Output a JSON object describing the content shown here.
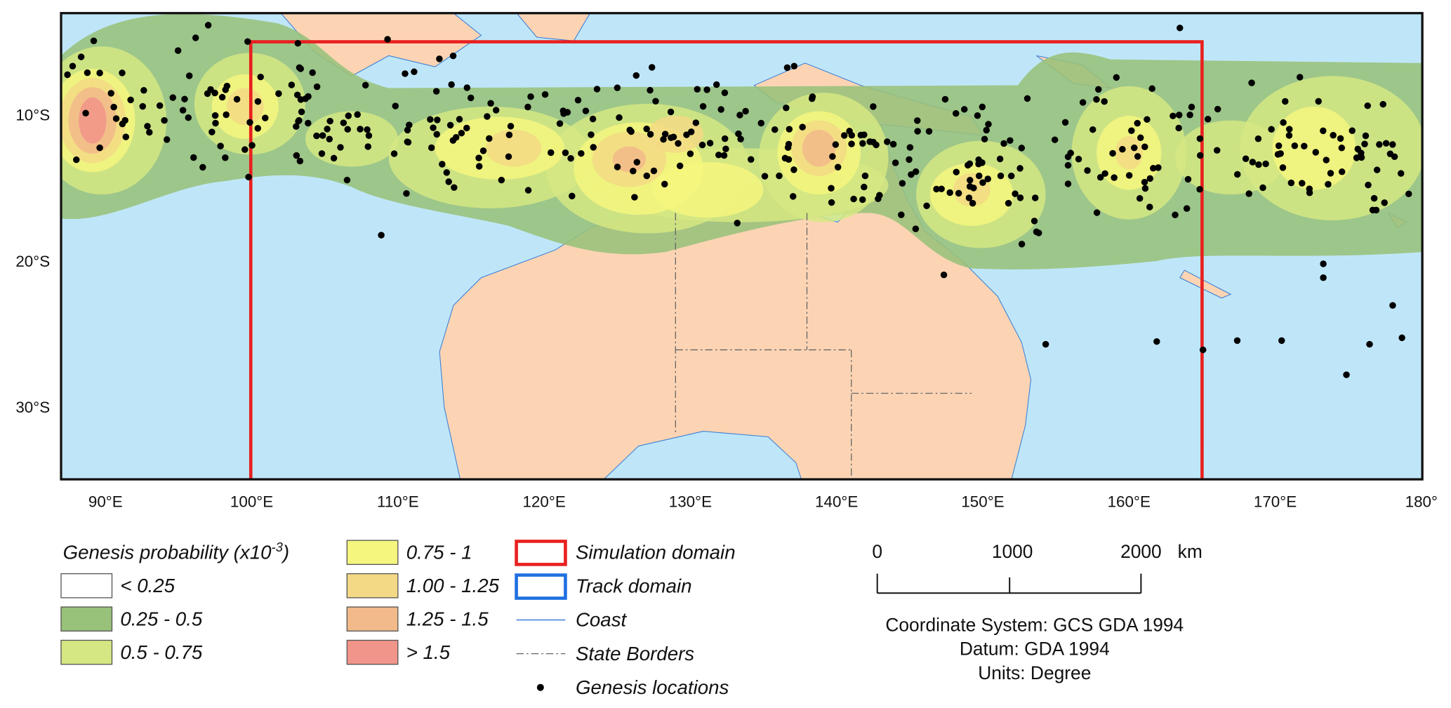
{
  "map": {
    "lat_labels": [
      "10°S",
      "20°S",
      "30°S"
    ],
    "lon_labels": [
      "90°E",
      "100°E",
      "110°E",
      "120°E",
      "130°E",
      "140°E",
      "150°E",
      "160°E",
      "170°E",
      "180°"
    ],
    "ocean_color": "#bfe6f8",
    "land_color": "#fcd4b4"
  },
  "legend": {
    "title": {
      "text": "Genesis probability (x10",
      "exponent": "-3",
      "close": ")"
    },
    "probability_classes": [
      {
        "label": "< 0.25",
        "color": "#ffffff"
      },
      {
        "label": "0.25 - 0.5",
        "color": "#98c27a"
      },
      {
        "label": "0.5 - 0.75",
        "color": "#d5e782"
      },
      {
        "label": "0.75 - 1",
        "color": "#f5f67e"
      },
      {
        "label": "1.00 - 1.25",
        "color": "#f3d985"
      },
      {
        "label": "1.25 - 1.5",
        "color": "#f2ba8a"
      },
      {
        "label": "> 1.5",
        "color": "#f1948a"
      }
    ],
    "symbols": [
      {
        "label": "Simulation domain",
        "color": "#e8201f"
      },
      {
        "label": "Track domain",
        "color": "#1f6fe0"
      },
      {
        "label": "Coast",
        "color": "#3a7fd6"
      },
      {
        "label": "State Borders",
        "color": "#666666"
      },
      {
        "label": "Genesis locations",
        "color": "#000000"
      }
    ]
  },
  "scale_bar": {
    "labels": [
      "0",
      "1000",
      "2000"
    ],
    "unit": "km"
  },
  "coordinate_info": [
    "Coordinate System: GCS GDA 1994",
    "Datum: GDA 1994",
    "Units: Degree"
  ]
}
